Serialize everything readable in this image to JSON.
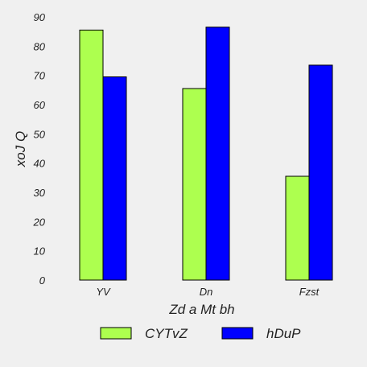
{
  "chart_data": {
    "type": "bar",
    "xlabel": "Zd a Mt bh",
    "ylabel": "xoJ Q",
    "categories": [
      "YV",
      "Dn",
      "Fzst"
    ],
    "series": [
      {
        "name": "CYTvZ",
        "values": [
          85.5,
          65.5,
          35.5
        ],
        "color": "#adff4f"
      },
      {
        "name": "hDuP",
        "values": [
          69.5,
          86.5,
          73.5
        ],
        "color": "#0000ff"
      }
    ],
    "ylim": [
      0,
      90
    ],
    "yticks": [
      0,
      10,
      20,
      30,
      40,
      50,
      60,
      70,
      80,
      90
    ],
    "grid": false,
    "legend": "bottom",
    "background": "#f0f0f0"
  }
}
